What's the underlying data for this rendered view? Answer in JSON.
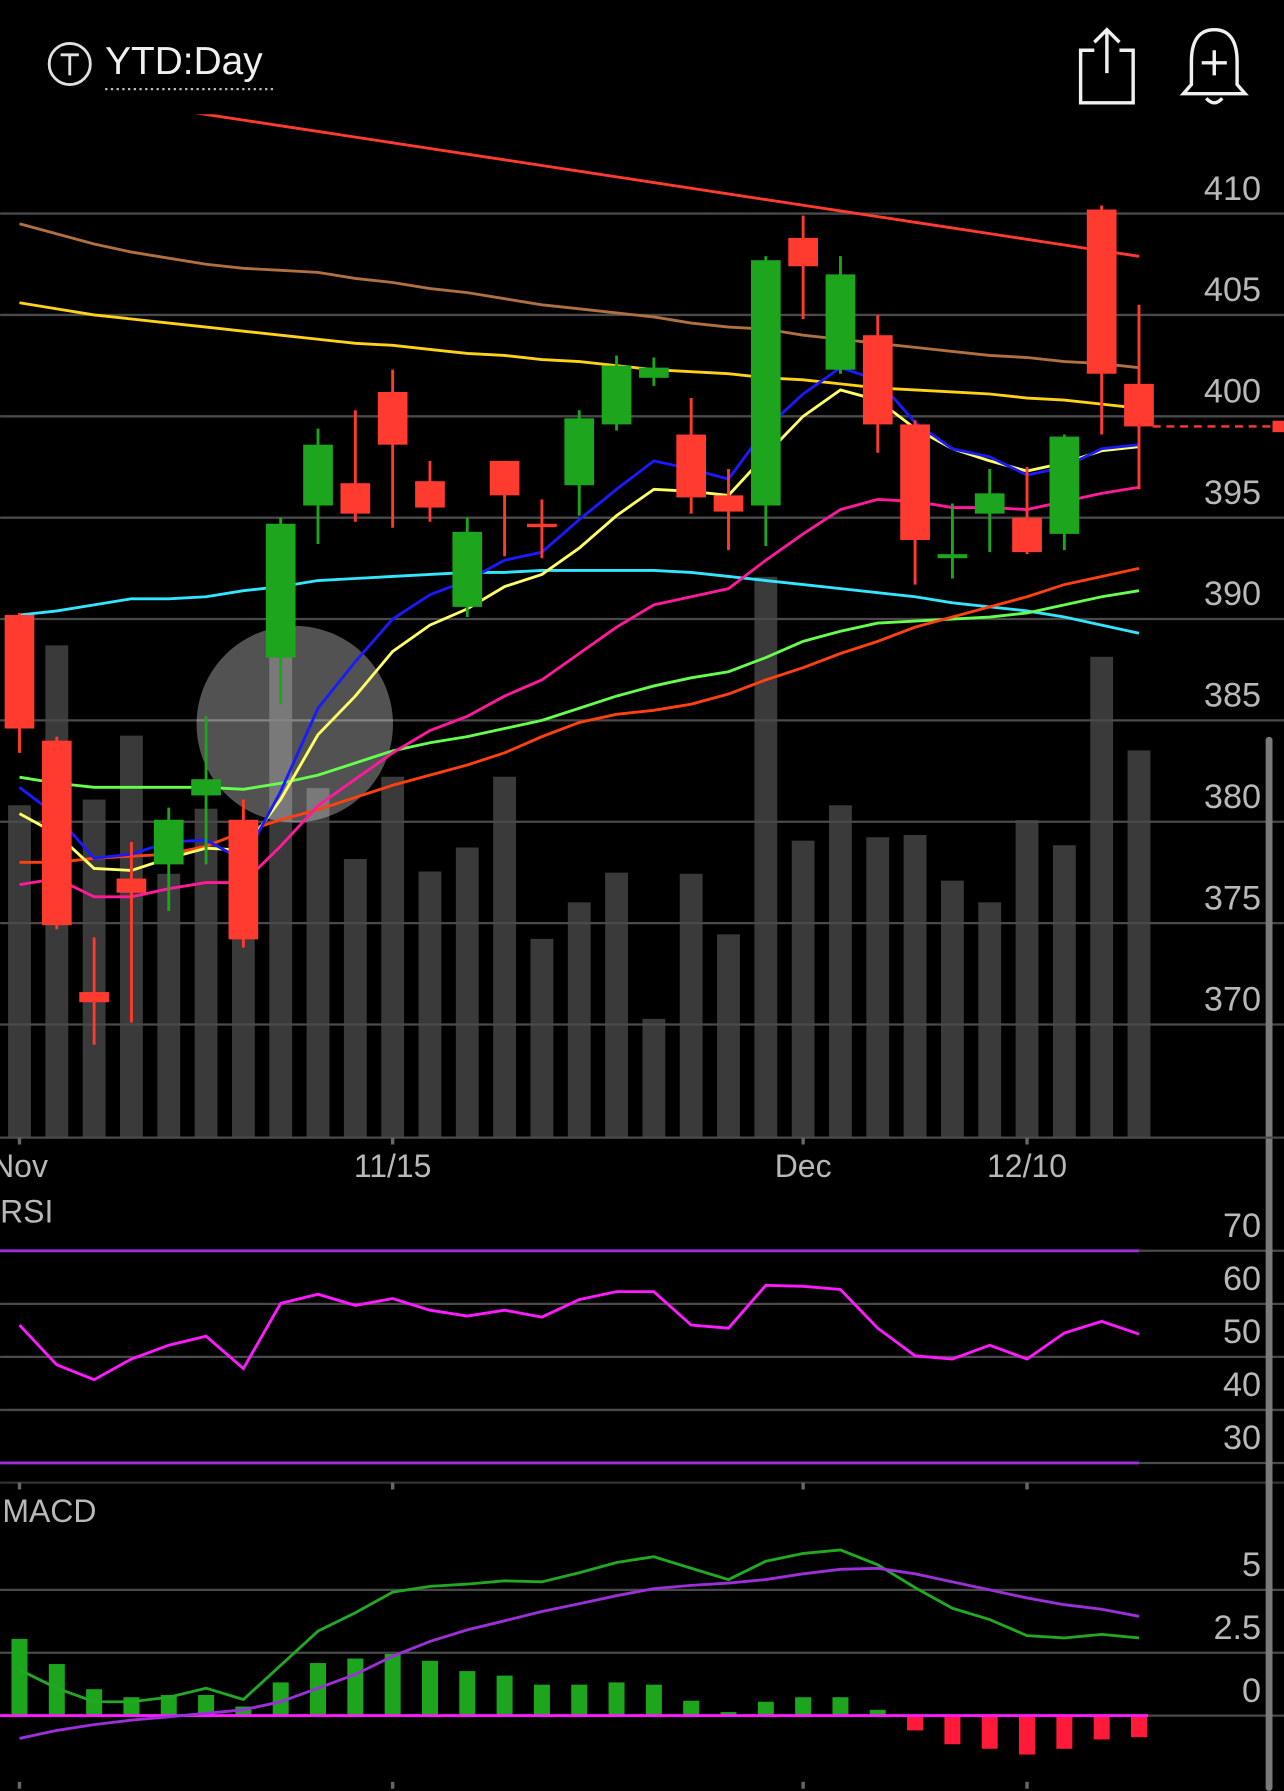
{
  "header": {
    "title": "YTD:Day"
  },
  "chart_data": [
    {
      "type": "candlestick",
      "categories": [
        "Nov",
        null,
        null,
        null,
        null,
        null,
        null,
        null,
        null,
        null,
        "11/15",
        null,
        null,
        null,
        null,
        null,
        null,
        null,
        null,
        null,
        null,
        "Dec",
        null,
        null,
        null,
        null,
        null,
        "12/10",
        null,
        null,
        null
      ],
      "open": [
        390.2,
        384.0,
        371.6,
        377.2,
        377.9,
        381.3,
        380.1,
        388.1,
        395.6,
        396.7,
        401.2,
        396.8,
        390.6,
        397.8,
        394.7,
        396.6,
        399.6,
        401.9,
        399.1,
        396.1,
        395.6,
        408.8,
        402.3,
        404.0,
        399.6,
        393.0,
        395.2,
        395.0,
        394.2,
        410.2,
        401.6
      ],
      "high": [
        390.3,
        384.2,
        374.3,
        379.0,
        380.7,
        385.2,
        381.1,
        395.0,
        399.4,
        400.3,
        402.3,
        397.8,
        395.0,
        397.8,
        395.9,
        400.3,
        403.0,
        402.9,
        400.9,
        397.4,
        407.9,
        409.9,
        407.9,
        405.0,
        399.8,
        395.7,
        397.4,
        397.5,
        399.1,
        410.4,
        405.5
      ],
      "low": [
        383.4,
        374.7,
        369.0,
        370.1,
        375.6,
        377.9,
        373.8,
        385.8,
        393.7,
        394.8,
        394.5,
        394.8,
        390.1,
        393.1,
        393.0,
        395.1,
        399.3,
        401.5,
        395.2,
        393.4,
        393.6,
        404.8,
        402.1,
        398.2,
        391.7,
        392.0,
        393.3,
        393.2,
        393.4,
        399.1,
        396.4
      ],
      "close": [
        384.6,
        374.9,
        371.1,
        376.5,
        380.1,
        382.1,
        374.2,
        394.7,
        398.6,
        395.2,
        398.6,
        395.5,
        394.3,
        396.1,
        394.6,
        399.9,
        402.5,
        402.4,
        396.0,
        395.3,
        407.7,
        407.4,
        407.0,
        399.6,
        393.9,
        393.2,
        396.2,
        393.3,
        399.0,
        402.1,
        399.5
      ],
      "up_color": "#1ea51e",
      "down_color": "#ff3b30",
      "volume": [
        291,
        431,
        296,
        352,
        231,
        288,
        226,
        421,
        306,
        244,
        316,
        233,
        254,
        316,
        174,
        206,
        232,
        104,
        231,
        178,
        491,
        260,
        291,
        263,
        265,
        225,
        206,
        278,
        256,
        421,
        339
      ],
      "volume_lim": [
        0,
        896
      ],
      "volume_color": "#3a3a3a",
      "series": [
        {
          "color": "#b07040",
          "values": [
            409.5,
            409.0,
            408.5,
            408.1,
            407.8,
            407.5,
            407.3,
            407.2,
            407.1,
            406.8,
            406.6,
            406.3,
            406.1,
            405.8,
            405.5,
            405.3,
            405.1,
            404.9,
            404.6,
            404.4,
            404.3,
            404.0,
            403.8,
            403.6,
            403.4,
            403.2,
            403.0,
            402.9,
            402.7,
            402.6,
            402.4
          ]
        },
        {
          "color": "#ffd21a",
          "values": [
            405.6,
            405.3,
            405.0,
            404.8,
            404.6,
            404.4,
            404.2,
            404.0,
            403.8,
            403.6,
            403.5,
            403.3,
            403.1,
            403.0,
            402.8,
            402.7,
            402.5,
            402.3,
            402.2,
            402.1,
            401.9,
            401.8,
            401.6,
            401.4,
            401.3,
            401.2,
            401.1,
            400.9,
            400.8,
            400.6,
            400.4
          ]
        },
        {
          "color": "#33e6ff",
          "values": [
            390.2,
            390.4,
            390.7,
            391.0,
            391.0,
            391.1,
            391.4,
            391.6,
            391.9,
            392.0,
            392.1,
            392.2,
            392.3,
            392.3,
            392.4,
            392.4,
            392.4,
            392.4,
            392.3,
            392.1,
            391.9,
            391.7,
            391.5,
            391.3,
            391.1,
            390.8,
            390.6,
            390.4,
            390.1,
            389.7,
            389.3
          ]
        },
        {
          "color": "#66ff4d",
          "values": [
            382.2,
            381.9,
            381.7,
            381.7,
            381.7,
            381.7,
            381.6,
            381.9,
            382.3,
            382.9,
            383.5,
            383.9,
            384.2,
            384.6,
            385.0,
            385.6,
            386.2,
            386.7,
            387.1,
            387.4,
            388.1,
            388.9,
            389.4,
            389.8,
            389.9,
            390.0,
            390.1,
            390.3,
            390.7,
            391.1,
            391.4
          ]
        },
        {
          "color": "#ff4010",
          "values": [
            378.0,
            378.0,
            378.2,
            378.3,
            378.4,
            378.8,
            379.5,
            380.1,
            380.6,
            381.2,
            381.8,
            382.3,
            382.8,
            383.4,
            384.2,
            384.9,
            385.3,
            385.5,
            385.8,
            386.3,
            387.0,
            387.6,
            388.3,
            388.9,
            389.6,
            390.1,
            390.6,
            391.1,
            391.7,
            392.1,
            392.5
          ]
        },
        {
          "color": "#ff1a9c",
          "values": [
            376.9,
            377.2,
            376.3,
            376.3,
            376.7,
            377.0,
            377.0,
            378.8,
            380.8,
            382.1,
            383.4,
            384.5,
            385.2,
            386.2,
            387.0,
            388.3,
            389.6,
            390.7,
            391.1,
            391.5,
            392.9,
            394.2,
            395.4,
            395.9,
            395.8,
            395.5,
            395.5,
            395.4,
            395.8,
            396.2,
            396.5
          ]
        },
        {
          "color": "#ffff66",
          "values": [
            380.4,
            379.4,
            377.7,
            377.6,
            378.2,
            378.7,
            378.6,
            381.1,
            384.3,
            386.2,
            388.4,
            389.7,
            390.5,
            391.6,
            392.2,
            393.5,
            395.1,
            396.4,
            396.3,
            396.1,
            398.1,
            400.0,
            401.3,
            400.8,
            399.4,
            398.4,
            397.8,
            397.3,
            397.7,
            398.3,
            398.5
          ]
        },
        {
          "color": "#1a1aff",
          "values": [
            381.7,
            380.3,
            378.2,
            378.4,
            379.0,
            379.1,
            378.1,
            381.5,
            385.6,
            387.9,
            390.0,
            391.2,
            391.9,
            392.9,
            393.3,
            394.9,
            396.4,
            397.8,
            397.4,
            396.9,
            399.4,
            401.1,
            402.4,
            401.8,
            399.7,
            398.4,
            398.0,
            397.1,
            397.5,
            398.4,
            398.6
          ]
        }
      ],
      "trendline": {
        "color": "#ff3b30",
        "values": [
          416.29,
          416.01,
          415.73,
          415.45,
          415.17,
          414.89,
          414.61,
          414.33,
          414.05,
          413.77,
          413.49,
          413.21,
          412.93,
          412.65,
          412.37,
          412.09,
          411.81,
          411.53,
          411.25,
          410.97,
          410.69,
          410.41,
          410.13,
          409.85,
          409.57,
          409.29,
          409.01,
          408.73,
          408.45,
          408.17,
          407.89
        ]
      },
      "ylim": [
        364.42,
        414.9
      ],
      "yticks": [
        370,
        375,
        380,
        385,
        390,
        395,
        400,
        405,
        410
      ],
      "grid": true
    },
    {
      "type": "line",
      "title": "RSI",
      "series": [
        {
          "color": "#ff1aff",
          "values": [
            56.0,
            48.5,
            45.7,
            49.6,
            52.2,
            53.9,
            47.8,
            60.1,
            61.8,
            59.7,
            61.0,
            58.8,
            57.7,
            58.8,
            57.5,
            60.8,
            62.3,
            62.3,
            56.0,
            55.4,
            63.5,
            63.3,
            62.7,
            55.4,
            50.2,
            49.6,
            52.2,
            49.6,
            54.5,
            56.7,
            54.3
          ]
        }
      ],
      "levels": [
        70,
        30
      ],
      "level_color": "#9b30d9",
      "ylim": [
        26.3,
        79.7
      ],
      "yticks": [
        30,
        40,
        50,
        60,
        70
      ],
      "grid": true
    },
    {
      "type": "macd",
      "title": "MACD",
      "histogram": {
        "up_color": "#1ea51e",
        "down_color": "#ff1a3a",
        "values": [
          3.05,
          2.05,
          1.05,
          0.73,
          0.82,
          0.82,
          0.36,
          1.32,
          2.09,
          2.27,
          2.45,
          2.18,
          1.77,
          1.59,
          1.23,
          1.23,
          1.32,
          1.23,
          0.59,
          0.14,
          0.55,
          0.73,
          0.73,
          0.23,
          -0.59,
          -1.14,
          -1.32,
          -1.55,
          -1.32,
          -0.95,
          -0.86
        ]
      },
      "series": [
        {
          "color": "#22a822",
          "values": [
            1.82,
            1.09,
            0.55,
            0.55,
            0.73,
            1.09,
            0.64,
            2.0,
            3.36,
            4.09,
            4.91,
            5.14,
            5.23,
            5.36,
            5.32,
            5.68,
            6.09,
            6.32,
            5.86,
            5.41,
            6.14,
            6.45,
            6.59,
            6.0,
            5.09,
            4.27,
            3.82,
            3.18,
            3.09,
            3.23,
            3.09
          ]
        },
        {
          "color": "#9b30d9",
          "values": [
            -0.91,
            -0.59,
            -0.36,
            -0.18,
            -0.05,
            0.09,
            0.23,
            0.55,
            1.09,
            1.64,
            2.36,
            2.95,
            3.41,
            3.77,
            4.14,
            4.45,
            4.77,
            5.05,
            5.18,
            5.27,
            5.41,
            5.64,
            5.82,
            5.86,
            5.64,
            5.32,
            5.0,
            4.68,
            4.41,
            4.23,
            3.95
          ]
        }
      ],
      "zero_color": "#ff1aff",
      "ylim": [
        -3,
        8.95
      ],
      "yticks": [
        0,
        2.5,
        5
      ],
      "grid": true
    }
  ]
}
